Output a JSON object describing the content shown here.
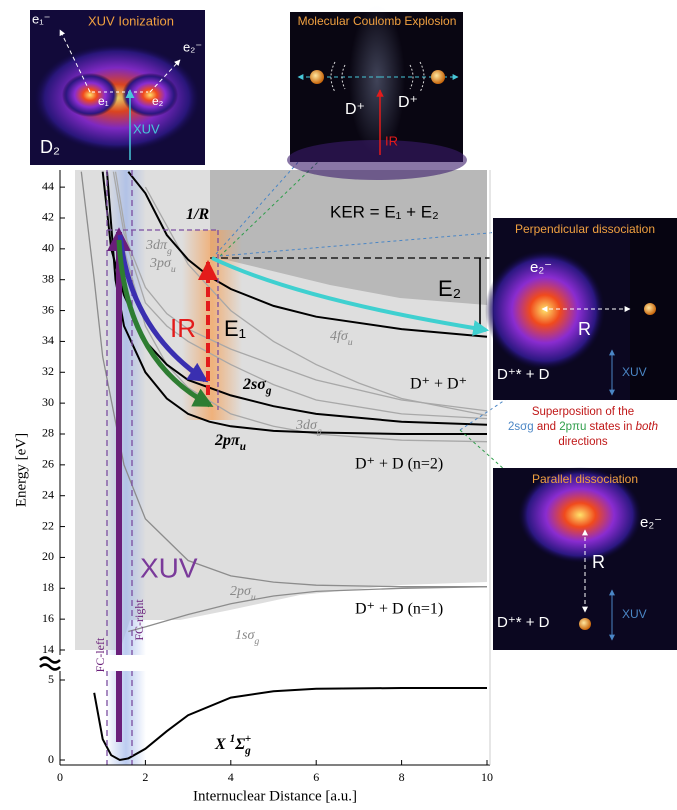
{
  "chart_data": {
    "type": "line",
    "xlabel": "Internuclear Distance [a.u.]",
    "ylabel": "Energy [eV]",
    "xlim": [
      0,
      10
    ],
    "xticks": [
      0,
      2,
      4,
      6,
      8,
      10
    ],
    "ylim": [
      14,
      45
    ],
    "yticks": [
      14,
      16,
      18,
      20,
      22,
      24,
      26,
      28,
      30,
      32,
      34,
      36,
      38,
      40,
      42,
      44
    ],
    "lower_ylim": [
      0,
      5.5
    ],
    "lower_yticks": [
      0,
      5
    ],
    "series": [
      {
        "label": "X ",
        "label_sup": "1",
        "label_main": "Σ",
        "label_sub": "g",
        "label_sup2": "+",
        "color": "#000000",
        "panel": "lower",
        "x": [
          0.8,
          1.0,
          1.2,
          1.4,
          1.6,
          2.0,
          2.5,
          3.0,
          4.0,
          5.0,
          6.0,
          8.0,
          10.0
        ],
        "values": [
          4.2,
          1.3,
          0.3,
          0.0,
          0.1,
          0.7,
          1.8,
          2.8,
          3.9,
          4.3,
          4.45,
          4.5,
          4.5
        ]
      },
      {
        "label": "1sσ",
        "label_sub": "g",
        "color": "#8c8c8c",
        "panel": "upper",
        "x": [
          1.6,
          2,
          3,
          4,
          5,
          6,
          8,
          10
        ],
        "values": [
          15.2,
          15.5,
          16.3,
          17.0,
          17.5,
          17.8,
          18.0,
          18.1
        ]
      },
      {
        "label": "2pσ",
        "label_sub": "u",
        "color": "#8c8c8c",
        "panel": "upper",
        "x": [
          0.5,
          0.8,
          1.0,
          1.5,
          2,
          3,
          4,
          5,
          6,
          8,
          10
        ],
        "values": [
          45,
          38,
          33,
          26,
          22.5,
          19.8,
          18.8,
          18.4,
          18.2,
          18.1,
          18.1
        ]
      },
      {
        "label": "3dπ",
        "label_sub": "g",
        "color": "#a8a8a8",
        "panel": "upper",
        "x": [
          1.25,
          1.5,
          2,
          2.5,
          3,
          4,
          5,
          6,
          8,
          10
        ],
        "values": [
          45,
          41,
          37.5,
          35.8,
          34.8,
          33.5,
          32.5,
          31.5,
          30.2,
          29.5
        ]
      },
      {
        "label": "3pσ",
        "label_sub": "u",
        "color": "#a8a8a8",
        "panel": "upper",
        "x": [
          1.3,
          1.6,
          2,
          2.5,
          3,
          4,
          5,
          6,
          8,
          10
        ],
        "values": [
          45,
          40,
          36.5,
          35,
          34,
          32.5,
          31.2,
          30.2,
          29.3,
          29
        ]
      },
      {
        "label": "4fσ",
        "label_sub": "u",
        "color": "#a8a8a8",
        "panel": "upper",
        "x": [
          2,
          3,
          4,
          5,
          6,
          7,
          8,
          10
        ],
        "values": [
          44,
          39,
          36,
          34,
          32.5,
          31.3,
          30.3,
          29.2
        ]
      },
      {
        "label": "3dσ",
        "label_sub": "g",
        "color": "#a8a8a8",
        "panel": "upper",
        "x": [
          1.5,
          2,
          2.5,
          3,
          4,
          5,
          6,
          8,
          10
        ],
        "values": [
          40,
          35,
          32.5,
          31,
          29.3,
          28.5,
          28,
          27.6,
          27.5
        ]
      },
      {
        "label": "2sσ",
        "label_sub": "g",
        "color": "#000000",
        "panel": "upper",
        "x": [
          1.0,
          1.2,
          1.5,
          2,
          2.5,
          3,
          3.5,
          4,
          5,
          6,
          8,
          10
        ],
        "values": [
          45,
          40,
          37,
          34,
          32.5,
          31.5,
          31,
          30.5,
          29.8,
          29.3,
          28.8,
          28.6
        ]
      },
      {
        "label": "2pπ",
        "label_sub": "u",
        "color": "#000000",
        "panel": "upper",
        "x": [
          1.1,
          1.3,
          1.5,
          2,
          2.5,
          3,
          3.5,
          4,
          5,
          6,
          8,
          10
        ],
        "values": [
          45,
          38,
          35,
          32,
          30.3,
          29.3,
          28.8,
          28.5,
          28.2,
          28.1,
          28.0,
          28.0
        ]
      },
      {
        "label": "1/R",
        "color": "#000000",
        "panel": "upper",
        "x": [
          1.6,
          2,
          2.5,
          3,
          3.5,
          4,
          5,
          6,
          8,
          10
        ],
        "values": [
          45,
          43.6,
          40.9,
          39.3,
          38.2,
          37.4,
          36.3,
          35.6,
          34.8,
          34.3
        ]
      }
    ],
    "annotations": {
      "ker": "KER = E₁ + E₂",
      "e1": "E₁",
      "e2": "E₂",
      "ir": "IR",
      "xuv": "XUV",
      "coulomb_limit": "D⁺ + D⁺",
      "n2_limit": "D⁺ + D (n=2)",
      "n1_limit": "D⁺ + D (n=1)",
      "fc_left": "FC-left",
      "fc_right": "FC-right"
    }
  },
  "panels": {
    "ionization": {
      "title": "XUV Ionization",
      "e1_out": "e₁⁻",
      "e2_out": "e₂⁻",
      "e1": "e₁",
      "e2": "e₂",
      "xuv": "XUV",
      "molecule": "D₂"
    },
    "coulomb": {
      "title": "Molecular Coulomb Explosion",
      "ion_left": "D⁺",
      "ion_right": "D⁺",
      "ir": "IR"
    },
    "perpendicular": {
      "title": "Perpendicular dissociation",
      "electron": "e₂⁻",
      "r": "R",
      "products": "D⁺* + D",
      "xuv": "XUV"
    },
    "superposition": {
      "line1": "Superposition of the",
      "state1": "2sσg",
      "and": " and ",
      "state2": "2pπu",
      "line2a": " states in ",
      "both": "both",
      "line3": "directions"
    },
    "parallel": {
      "title": "Parallel dissociation",
      "electron": "e₂⁻",
      "r": "R",
      "products": "D⁺* + D",
      "xuv": "XUV"
    }
  }
}
